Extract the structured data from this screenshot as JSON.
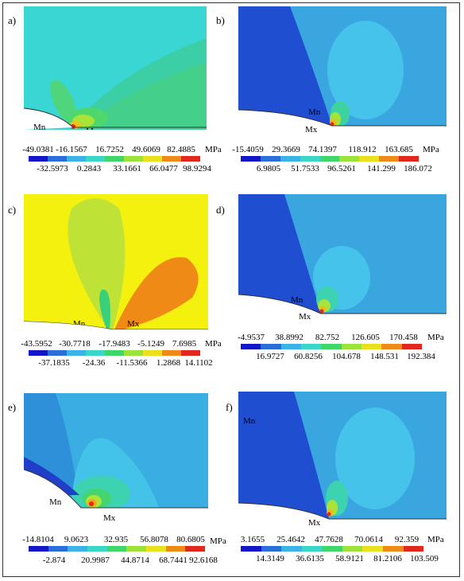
{
  "palette": [
    "#1515c8",
    "#2a6fd9",
    "#3ab3e6",
    "#39d6c9",
    "#3fd66a",
    "#9be33a",
    "#e8e11c",
    "#f08a17",
    "#e2281c"
  ],
  "panels": [
    {
      "id": "a",
      "label": "a)",
      "annotations": [
        "Mn",
        "Mx"
      ],
      "unit": "MPa",
      "top_values": [
        "-49.0381",
        "-16.1567",
        "16.7252",
        "49.6069",
        "82.4885"
      ],
      "bottom_values": [
        "-32.5973",
        "0.2843",
        "33.1661",
        "66.0477",
        "98.9294"
      ]
    },
    {
      "id": "b",
      "label": "b)",
      "annotations": [
        "Mn",
        "Mx"
      ],
      "unit": "MPa",
      "top_values": [
        "-15.4059",
        "29.3669",
        "74.1397",
        "118.912",
        "163.685"
      ],
      "bottom_values": [
        "6.9805",
        "51.7533",
        "96.5261",
        "141.299",
        "186.072"
      ]
    },
    {
      "id": "c",
      "label": "c)",
      "annotations": [
        "Mn",
        "Mx"
      ],
      "unit": "MPa",
      "top_values": [
        "-43.5952",
        "-30.7718",
        "-17.9483",
        "-5.1249",
        "7.6985"
      ],
      "bottom_values": [
        "-37.1835",
        "-24.36",
        "-11.5366",
        "1.2868",
        "14.1102"
      ]
    },
    {
      "id": "d",
      "label": "d)",
      "annotations": [
        "Mn",
        "Mx"
      ],
      "unit": "MPa",
      "top_values": [
        "-4.9537",
        "38.8992",
        "82.752",
        "126.605",
        "170.458"
      ],
      "bottom_values": [
        "16.9727",
        "60.8256",
        "104.678",
        "148.531",
        "192.384"
      ]
    },
    {
      "id": "e",
      "label": "e)",
      "annotations": [
        "Mn",
        "Mx"
      ],
      "unit": "MPa",
      "top_values": [
        "-14.8104",
        "9.0623",
        "32.935",
        "56.8078",
        "80.6805"
      ],
      "bottom_values": [
        "-2.874",
        "20.9987",
        "44.8714",
        "68.7441",
        "92.6168"
      ]
    },
    {
      "id": "f",
      "label": "f)",
      "annotations": [
        "Mn",
        "Mx"
      ],
      "unit": "MPa",
      "top_values": [
        "3.1655",
        "25.4642",
        "47.7628",
        "70.0614",
        "92.359"
      ],
      "bottom_values": [
        "14.3149",
        "36.6135",
        "58.9121",
        "81.2106",
        "103.509"
      ]
    }
  ]
}
